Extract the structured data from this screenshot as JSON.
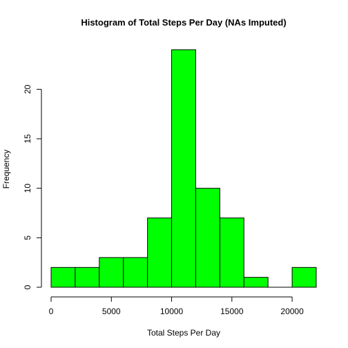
{
  "chart_data": {
    "type": "bar",
    "title": "Histogram of Total Steps Per Day (NAs Imputed)",
    "xlabel": "Total Steps Per Day",
    "ylabel": "Frequency",
    "bin_edges": [
      0,
      2000,
      4000,
      6000,
      8000,
      10000,
      12000,
      14000,
      16000,
      18000,
      20000,
      22000
    ],
    "values": [
      2,
      2,
      3,
      3,
      7,
      24,
      10,
      7,
      1,
      0,
      2
    ],
    "xlim": [
      0,
      22000
    ],
    "ylim": [
      0,
      24
    ],
    "xticks": [
      0,
      5000,
      10000,
      15000,
      20000
    ],
    "xtick_labels": [
      "0",
      "5000",
      "10000",
      "15000",
      "20000"
    ],
    "yticks": [
      0,
      5,
      10,
      15,
      20
    ],
    "ytick_labels": [
      "0",
      "5",
      "10",
      "15",
      "20"
    ],
    "bar_color": "#00ff00",
    "grid": false,
    "legend": "none"
  }
}
